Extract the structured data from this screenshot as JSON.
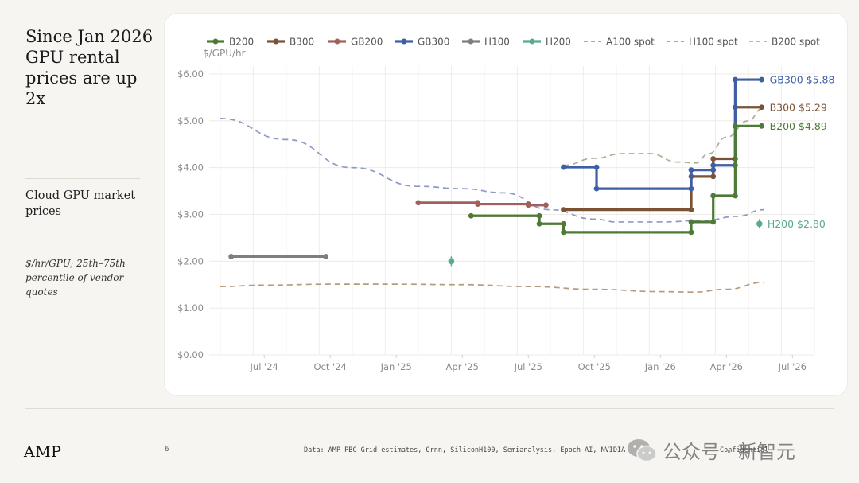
{
  "headline": "Since Jan 2026 GPU rental prices are up 2x",
  "subhead": "Cloud GPU market prices",
  "note": "$/hr/GPU; 25th–75th percentile of vendor quotes",
  "footer": {
    "logo": "AMP",
    "page_number": "6",
    "source": "Data: AMP PBC Grid estimates, Ornn, SiliconH100, Semianalysis, Epoch AI, NVIDIA",
    "confidential": "Confidential",
    "watermark": "公众号 · 新智元"
  },
  "chart_data": {
    "type": "line",
    "ylabel": "$/GPU/hr",
    "ylim": [
      0,
      6
    ],
    "yticks": [
      0,
      1,
      2,
      3,
      4,
      5,
      6
    ],
    "ytick_labels": [
      "$0.00",
      "$1.00",
      "$2.00",
      "$3.00",
      "$4.00",
      "$5.00",
      "$6.00"
    ],
    "x_unit": "months since Jan 2024 (1.0 = Feb 1, 2024)",
    "xlim": [
      3.5,
      31.0
    ],
    "xticks": [
      6,
      9,
      12,
      15,
      18,
      21,
      24,
      27,
      30
    ],
    "xtick_labels": [
      "Jul '24",
      "Oct '24",
      "Jan '25",
      "Apr '25",
      "Jul '25",
      "Oct '25",
      "Jan '26",
      "Apr '26",
      "Jul '26"
    ],
    "grid": true,
    "legend_position": "top",
    "series": [
      {
        "name": "B200",
        "color": "#4e7a36",
        "style": "step",
        "points": [
          [
            15.4,
            2.97
          ],
          [
            18.5,
            2.97
          ],
          [
            18.5,
            2.8
          ],
          [
            19.6,
            2.8
          ],
          [
            19.6,
            2.62
          ],
          [
            25.4,
            2.62
          ],
          [
            25.4,
            2.84
          ],
          [
            26.4,
            2.84
          ],
          [
            26.4,
            3.4
          ],
          [
            27.4,
            3.4
          ],
          [
            27.4,
            4.89
          ],
          [
            28.6,
            4.89
          ]
        ],
        "end_label": "B200 $4.89"
      },
      {
        "name": "B300",
        "color": "#7a5234",
        "style": "step",
        "points": [
          [
            19.6,
            3.1
          ],
          [
            25.4,
            3.1
          ],
          [
            25.4,
            3.81
          ],
          [
            26.4,
            3.81
          ],
          [
            26.4,
            4.19
          ],
          [
            27.4,
            4.19
          ],
          [
            27.4,
            5.29
          ],
          [
            28.6,
            5.29
          ]
        ],
        "end_label": "B300 $5.29"
      },
      {
        "name": "GB200",
        "color": "#a0605e",
        "style": "step",
        "points": [
          [
            13.0,
            3.25
          ],
          [
            15.7,
            3.25
          ],
          [
            15.7,
            3.22
          ],
          [
            18.0,
            3.22
          ],
          [
            18.0,
            3.2
          ],
          [
            18.8,
            3.2
          ]
        ],
        "end_label": ""
      },
      {
        "name": "GB300",
        "color": "#3e5fa6",
        "style": "step",
        "points": [
          [
            19.6,
            4.01
          ],
          [
            21.1,
            4.01
          ],
          [
            21.1,
            3.55
          ],
          [
            25.4,
            3.55
          ],
          [
            25.4,
            3.95
          ],
          [
            26.4,
            3.95
          ],
          [
            26.4,
            4.05
          ],
          [
            27.4,
            4.05
          ],
          [
            27.4,
            5.88
          ],
          [
            28.6,
            5.88
          ]
        ],
        "end_label": "GB300 $5.88"
      },
      {
        "name": "H100",
        "color": "#7f7f7f",
        "style": "step",
        "points": [
          [
            4.5,
            2.1
          ],
          [
            8.8,
            2.1
          ]
        ],
        "end_label": ""
      },
      {
        "name": "H200",
        "color": "#5aaa8e",
        "style": "point",
        "points": [
          [
            14.5,
            2.0
          ],
          [
            28.5,
            2.8
          ]
        ],
        "end_label": "H200 $2.80"
      },
      {
        "name": "A100 spot",
        "color": "#b69a7c",
        "style": "dashed",
        "points": [
          [
            4.0,
            1.46
          ],
          [
            6.0,
            1.49
          ],
          [
            9.0,
            1.51
          ],
          [
            12.0,
            1.51
          ],
          [
            15.0,
            1.5
          ],
          [
            18.0,
            1.46
          ],
          [
            21.0,
            1.4
          ],
          [
            24.0,
            1.35
          ],
          [
            25.5,
            1.34
          ],
          [
            27.0,
            1.4
          ],
          [
            28.7,
            1.55
          ]
        ],
        "end_label": ""
      },
      {
        "name": "H100 spot",
        "color": "#8e98c8",
        "style": "dashed",
        "points": [
          [
            4.0,
            5.05
          ],
          [
            7.0,
            4.6
          ],
          [
            10.0,
            4.0
          ],
          [
            13.0,
            3.6
          ],
          [
            15.0,
            3.55
          ],
          [
            16.9,
            3.46
          ],
          [
            19.0,
            3.1
          ],
          [
            21.0,
            2.9
          ],
          [
            22.0,
            2.84
          ],
          [
            24.0,
            2.84
          ],
          [
            26.0,
            2.87
          ],
          [
            27.5,
            2.96
          ],
          [
            28.7,
            3.1
          ]
        ],
        "end_label": ""
      },
      {
        "name": "B200 spot",
        "color": "#a8b098",
        "style": "dashed",
        "points": [
          [
            19.6,
            4.05
          ],
          [
            21.0,
            4.2
          ],
          [
            22.3,
            4.3
          ],
          [
            23.5,
            4.3
          ],
          [
            24.8,
            4.12
          ],
          [
            25.6,
            4.1
          ],
          [
            26.2,
            4.3
          ],
          [
            27.0,
            4.65
          ],
          [
            28.0,
            5.0
          ],
          [
            28.6,
            5.25
          ]
        ],
        "end_label": ""
      }
    ]
  }
}
